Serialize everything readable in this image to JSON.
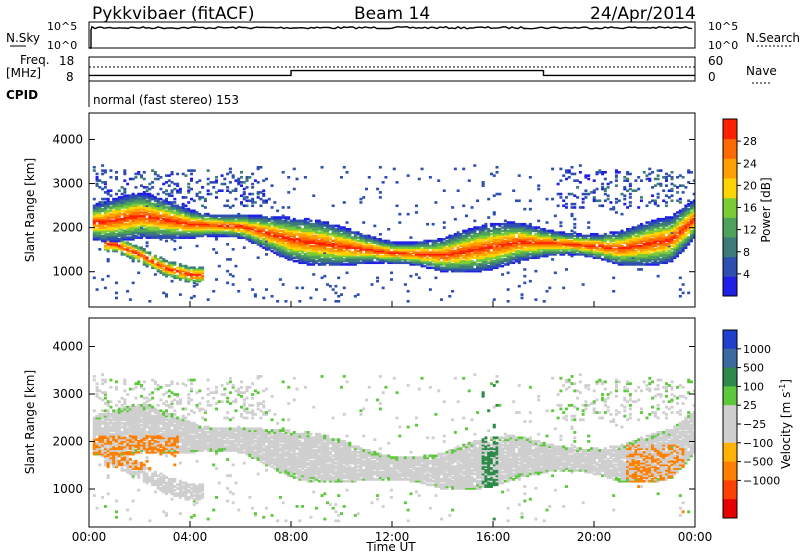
{
  "header": {
    "station": "Pykkvibaer (fitACF)",
    "beam": "Beam 14",
    "date": "24/Apr/2014"
  },
  "top_panels": {
    "nsky": {
      "label": "N.Sky",
      "tick_high": "10^5",
      "tick_low": "10^0",
      "right_label": "N.Search",
      "right_tick_high": "10^5",
      "right_tick_low": "10^0",
      "level": 0.78
    },
    "freq": {
      "label_line1": "Freq.",
      "label_line2": "[MHz]",
      "tick_high": "18",
      "tick_low": "8",
      "right_label": "Nave",
      "right_tick_high": "60",
      "right_tick_low": "0",
      "freq_mhz": 11,
      "nave_series": [
        {
          "from": "00:00",
          "to": "08:00",
          "value": 14
        },
        {
          "from": "08:00",
          "to": "18:00",
          "value": 26
        },
        {
          "from": "18:00",
          "to": "24:00",
          "value": 14
        }
      ]
    },
    "cpid": {
      "label": "CPID",
      "text": "normal (fast stereo) 153"
    }
  },
  "chart_data": [
    {
      "type": "heatmap",
      "name": "power",
      "xlabel": "",
      "ylabel": "Slant Range [km]",
      "xlim": [
        0,
        24
      ],
      "ylim": [
        200,
        4600
      ],
      "yticks": [
        "1000",
        "2000",
        "3000",
        "4000"
      ],
      "colorbar": {
        "label": "Power [dB]",
        "ticks": [
          "4",
          "8",
          "12",
          "16",
          "20",
          "24",
          "28"
        ],
        "colors": [
          "#1f1fe6",
          "#2e4fb0",
          "#3d7a7a",
          "#4ea35a",
          "#7ccc35",
          "#ffd400",
          "#ffa000",
          "#ff6a00",
          "#ff2000"
        ]
      },
      "bands": [
        {
          "label": "main echo band",
          "points": [
            [
              0.5,
              2100
            ],
            [
              2,
              2250
            ],
            [
              4,
              2050
            ],
            [
              6,
              2000
            ],
            [
              8,
              1700
            ],
            [
              10,
              1550
            ],
            [
              12,
              1400
            ],
            [
              14,
              1350
            ],
            [
              15.5,
              1500
            ],
            [
              17,
              1650
            ],
            [
              19,
              1600
            ],
            [
              21,
              1500
            ],
            [
              23,
              1700
            ],
            [
              24,
              2200
            ]
          ]
        },
        {
          "label": "lower band",
          "points": [
            [
              1,
              1600
            ],
            [
              2,
              1350
            ],
            [
              3,
              1050
            ],
            [
              4,
              900
            ]
          ]
        }
      ]
    },
    {
      "type": "heatmap",
      "name": "velocity",
      "xlabel": "Time UT",
      "ylabel": "Slant Range [km]",
      "xlim": [
        0,
        24
      ],
      "ylim": [
        200,
        4600
      ],
      "yticks": [
        "1000",
        "2000",
        "3000",
        "4000"
      ],
      "xticks": [
        "00:00",
        "04:00",
        "08:00",
        "12:00",
        "16:00",
        "20:00",
        "00:00"
      ],
      "colorbar": {
        "label": "Velocity [m s",
        "label_sup": "-1",
        "label_end": "]",
        "ticks": [
          "1000",
          "500",
          "100",
          "25",
          "−25",
          "−100",
          "−500",
          "−1000"
        ],
        "colors": [
          "#1f3fcc",
          "#3a6aa0",
          "#2e8a4a",
          "#5ec83c",
          "#cfcfcf",
          "#cfcfcf",
          "#ffb300",
          "#ff7f00",
          "#ff4000",
          "#e60000"
        ]
      }
    }
  ]
}
